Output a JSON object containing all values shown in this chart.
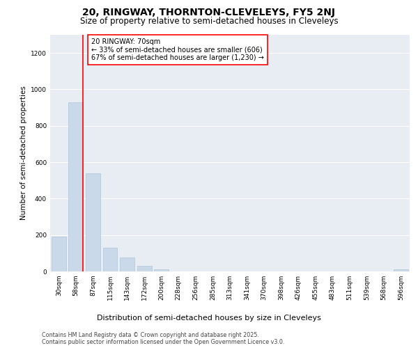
{
  "title1": "20, RINGWAY, THORNTON-CLEVELEYS, FY5 2NJ",
  "title2": "Size of property relative to semi-detached houses in Cleveleys",
  "xlabel": "Distribution of semi-detached houses by size in Cleveleys",
  "ylabel": "Number of semi-detached properties",
  "categories": [
    "30sqm",
    "58sqm",
    "87sqm",
    "115sqm",
    "143sqm",
    "172sqm",
    "200sqm",
    "228sqm",
    "256sqm",
    "285sqm",
    "313sqm",
    "341sqm",
    "370sqm",
    "398sqm",
    "426sqm",
    "455sqm",
    "483sqm",
    "511sqm",
    "539sqm",
    "568sqm",
    "596sqm"
  ],
  "values": [
    190,
    930,
    540,
    130,
    75,
    30,
    10,
    0,
    0,
    0,
    0,
    0,
    0,
    0,
    0,
    0,
    0,
    0,
    0,
    0,
    10
  ],
  "bar_color": "#c9d9ea",
  "bar_edgecolor": "#b0c4d8",
  "property_label": "20 RINGWAY: 70sqm",
  "annotation_line1": "← 33% of semi-detached houses are smaller (606)",
  "annotation_line2": "67% of semi-detached houses are larger (1,230) →",
  "annotation_box_color": "white",
  "annotation_box_edgecolor": "red",
  "red_line_color": "red",
  "ylim": [
    0,
    1300
  ],
  "yticks": [
    0,
    200,
    400,
    600,
    800,
    1000,
    1200
  ],
  "plot_bg_color": "#e8edf3",
  "grid_color": "white",
  "footer1": "Contains HM Land Registry data © Crown copyright and database right 2025.",
  "footer2": "Contains public sector information licensed under the Open Government Licence v3.0.",
  "title1_fontsize": 10,
  "title2_fontsize": 8.5,
  "xlabel_fontsize": 8,
  "ylabel_fontsize": 7.5,
  "tick_fontsize": 6.5,
  "footer_fontsize": 5.8,
  "annotation_fontsize": 7
}
